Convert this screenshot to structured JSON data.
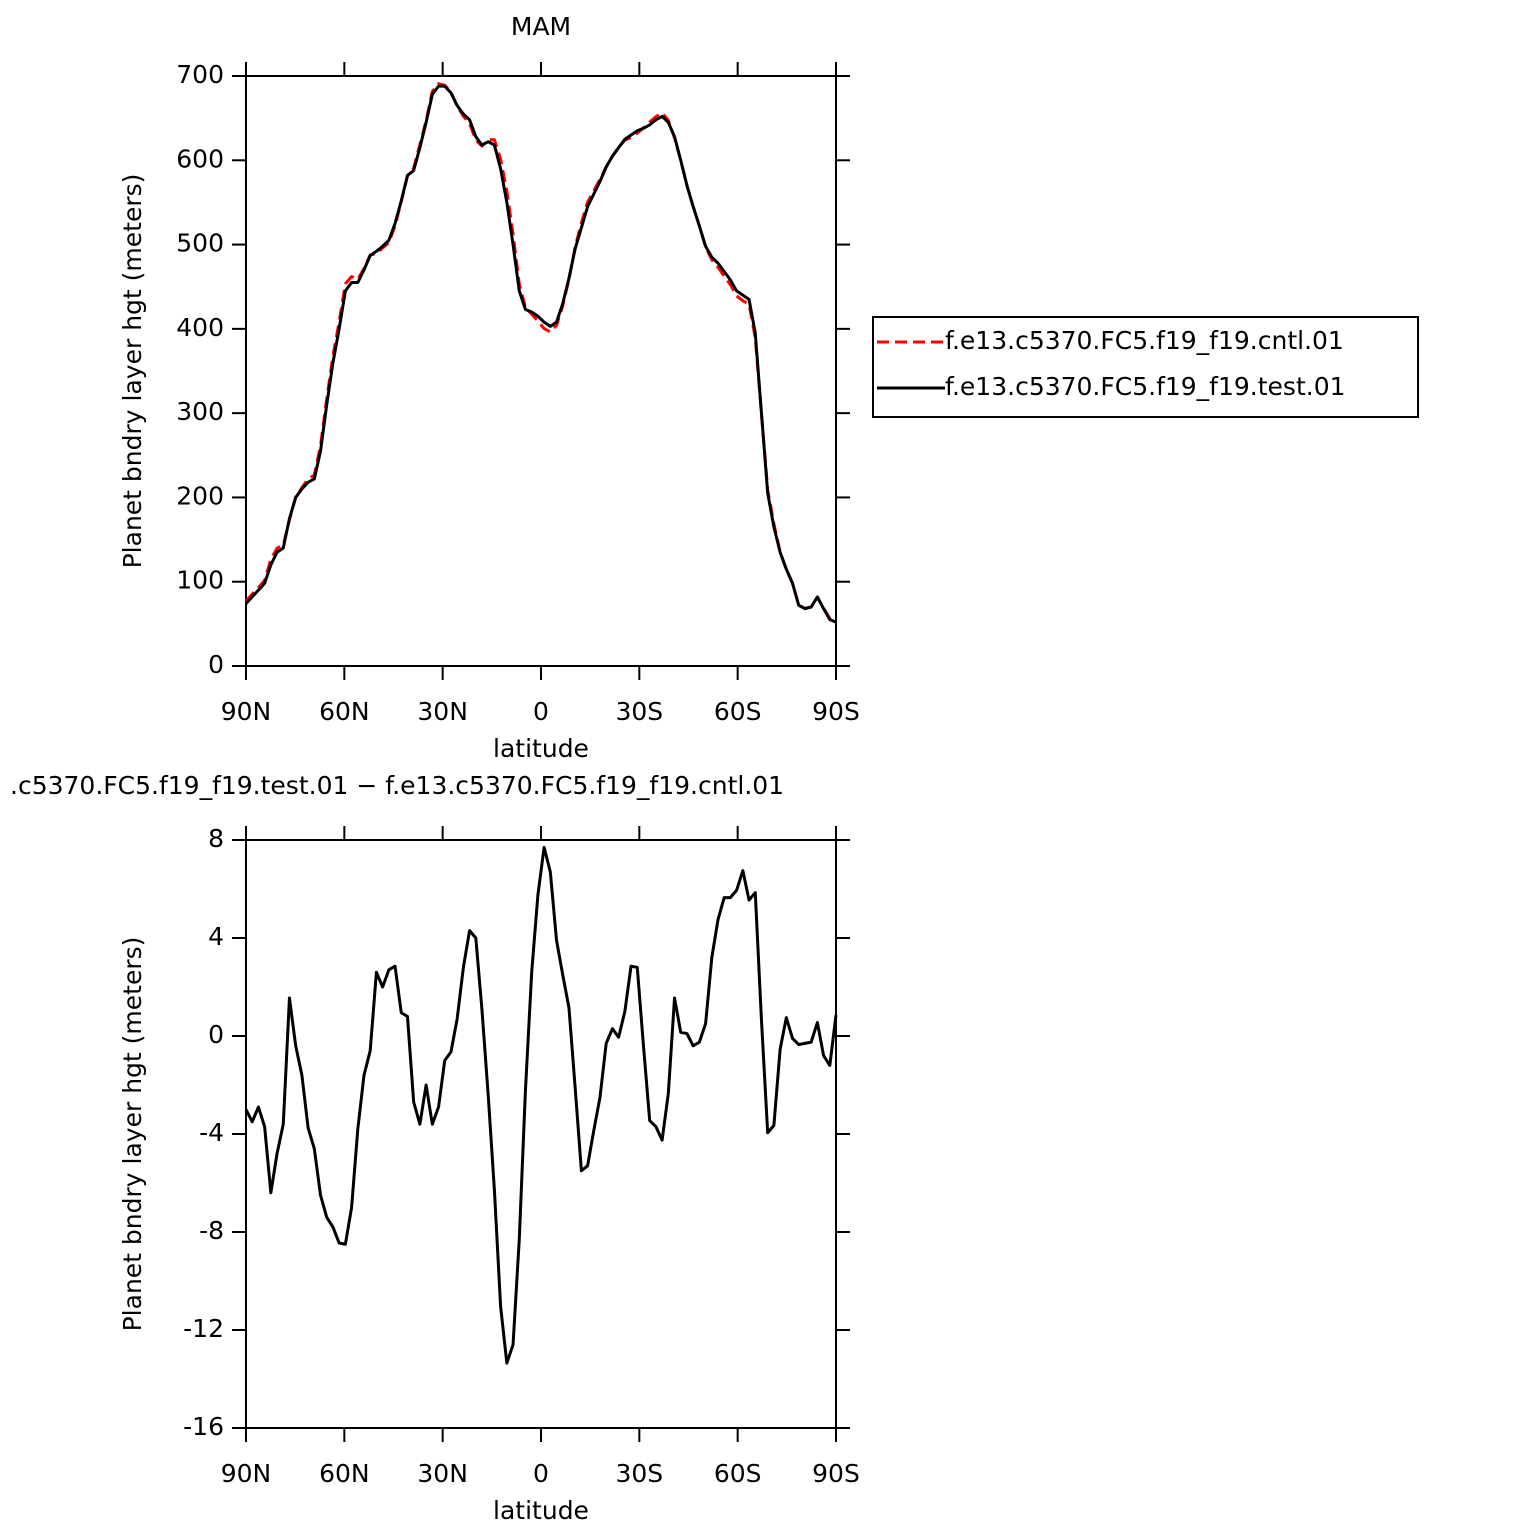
{
  "chart_data": [
    {
      "type": "line",
      "title": "MAM",
      "xlabel": "latitude",
      "ylabel": "Planet bndry layer hgt (meters)",
      "x": [
        90,
        88.11,
        86.21,
        84.32,
        82.42,
        80.53,
        78.63,
        76.74,
        74.84,
        72.95,
        71.05,
        69.16,
        67.26,
        65.37,
        63.47,
        61.58,
        59.68,
        57.79,
        55.89,
        54.0,
        52.11,
        50.21,
        48.32,
        46.42,
        44.53,
        42.63,
        40.74,
        38.84,
        36.95,
        35.05,
        33.16,
        31.26,
        29.37,
        27.47,
        25.58,
        23.68,
        21.79,
        19.89,
        18.0,
        16.11,
        14.21,
        12.32,
        10.42,
        8.53,
        6.63,
        4.74,
        2.84,
        0.95,
        -0.95,
        -2.84,
        -4.74,
        -6.63,
        -8.53,
        -10.42,
        -12.32,
        -14.21,
        -16.11,
        -18.0,
        -19.89,
        -21.79,
        -23.68,
        -25.58,
        -27.47,
        -29.37,
        -31.26,
        -33.16,
        -35.05,
        -36.95,
        -38.84,
        -40.74,
        -42.63,
        -44.53,
        -46.42,
        -48.32,
        -50.21,
        -52.11,
        -54.0,
        -55.89,
        -57.79,
        -59.68,
        -61.58,
        -63.47,
        -65.37,
        -67.26,
        -69.16,
        -71.05,
        -72.95,
        -74.84,
        -76.74,
        -78.63,
        -80.53,
        -82.42,
        -84.32,
        -86.21,
        -88.11,
        -90
      ],
      "series": [
        {
          "name": "f.e13.c5370.FC5.f19_f19.cntl.01",
          "color": "#ff0000",
          "linestyle": "dashed",
          "values": [
            77,
            85.5,
            92.9,
            101.7,
            126.4,
            139.8,
            143.6,
            173.45,
            200.4,
            211.6,
            221.75,
            226.6,
            261.5,
            317.4,
            367.8,
            408.45,
            453.5,
            462,
            458.8,
            471.6,
            487.6,
            489.4,
            496,
            502.3,
            522.15,
            551.05,
            581.2,
            590.7,
            618.6,
            647,
            681.6,
            690.9,
            689,
            680.65,
            664.3,
            652.2,
            643.7,
            624,
            616.95,
            624.4,
            624.3,
            601.05,
            563.35,
            512.6,
            453.3,
            425.2,
            417.4,
            409.25,
            400.3,
            396.3,
            404.1,
            427.5,
            458.85,
            497.1,
            525.5,
            550.3,
            563.85,
            577.5,
            592.3,
            604.7,
            615.05,
            624,
            627.15,
            632.2,
            638.4,
            645.45,
            651.7,
            656.25,
            647.35,
            626.45,
            599.85,
            569.9,
            545.4,
            522.25,
            497.5,
            481.8,
            473.25,
            462.35,
            452.35,
            439.05,
            433.25,
            429.45,
            389.15,
            299.35,
            208.95,
            168.65,
            135.55,
            114.25,
            98.1,
            72.35,
            68.3,
            70.25,
            81.45,
            68.8,
            56.2,
            51.15
          ]
        },
        {
          "name": "f.e13.c5370.FC5.f19_f19.test.01",
          "color": "#000000",
          "linestyle": "solid",
          "values": [
            74,
            82,
            90,
            98,
            120,
            135,
            140,
            175,
            200,
            210,
            218,
            222,
            255,
            310,
            360,
            400,
            445,
            455,
            455,
            470,
            487,
            492,
            498,
            505,
            525,
            552,
            582,
            588,
            615,
            645,
            678,
            688,
            688,
            680,
            665,
            655,
            648,
            628,
            618,
            622,
            618,
            590,
            550,
            500,
            445,
            423,
            420,
            415,
            408,
            403,
            408,
            430,
            460,
            495,
            520,
            545,
            560,
            575,
            592,
            605,
            615,
            625,
            630,
            635,
            638,
            642,
            648,
            652,
            645,
            628,
            600,
            570,
            545,
            522,
            498,
            485,
            478,
            468,
            458,
            445,
            440,
            435,
            395,
            300,
            205,
            165,
            135,
            115,
            98,
            72,
            68,
            70,
            82,
            68,
            55,
            52
          ]
        }
      ],
      "xlim": [
        90,
        -90
      ],
      "xticks": [
        {
          "value": 90,
          "label": "90N"
        },
        {
          "value": 60,
          "label": "60N"
        },
        {
          "value": 30,
          "label": "30N"
        },
        0,
        {
          "value": -30,
          "label": "30S"
        },
        {
          "value": -60,
          "label": "60S"
        },
        {
          "value": -90,
          "label": "90S"
        }
      ],
      "ylim": [
        0,
        700
      ],
      "yticks": [
        0,
        100,
        200,
        300,
        400,
        500,
        600,
        700
      ],
      "legend": "right"
    },
    {
      "type": "line",
      "title": ".c5370.FC5.f19_f19.test.01 − f.e13.c5370.FC5.f19_f19.cntl.01",
      "xlabel": "latitude",
      "ylabel": "Planet bndry layer hgt (meters)",
      "x": [
        90,
        88.11,
        86.21,
        84.32,
        82.42,
        80.53,
        78.63,
        76.74,
        74.84,
        72.95,
        71.05,
        69.16,
        67.26,
        65.37,
        63.47,
        61.58,
        59.68,
        57.79,
        55.89,
        54.0,
        52.11,
        50.21,
        48.32,
        46.42,
        44.53,
        42.63,
        40.74,
        38.84,
        36.95,
        35.05,
        33.16,
        31.26,
        29.37,
        27.47,
        25.58,
        23.68,
        21.79,
        19.89,
        18.0,
        16.11,
        14.21,
        12.32,
        10.42,
        8.53,
        6.63,
        4.74,
        2.84,
        0.95,
        -0.95,
        -2.84,
        -4.74,
        -6.63,
        -8.53,
        -10.42,
        -12.32,
        -14.21,
        -16.11,
        -18.0,
        -19.89,
        -21.79,
        -23.68,
        -25.58,
        -27.47,
        -29.37,
        -31.26,
        -33.16,
        -35.05,
        -36.95,
        -38.84,
        -40.74,
        -42.63,
        -44.53,
        -46.42,
        -48.32,
        -50.21,
        -52.11,
        -54.0,
        -55.89,
        -57.79,
        -59.68,
        -61.58,
        -63.47,
        -65.37,
        -67.26,
        -69.16,
        -71.05,
        -72.95,
        -74.84,
        -76.74,
        -78.63,
        -80.53,
        -82.42,
        -84.32,
        -86.21,
        -88.11,
        -90
      ],
      "series": [
        {
          "color": "#000000",
          "linestyle": "solid",
          "values": [
            -3.0,
            -3.5,
            -2.9,
            -3.7,
            -6.4,
            -4.8,
            -3.6,
            1.55,
            -0.4,
            -1.6,
            -3.75,
            -4.6,
            -6.5,
            -7.4,
            -7.8,
            -8.45,
            -8.5,
            -7.0,
            -3.8,
            -1.6,
            -0.6,
            2.6,
            2.0,
            2.7,
            2.85,
            0.95,
            0.8,
            -2.7,
            -3.6,
            -2.0,
            -3.6,
            -2.9,
            -1.0,
            -0.65,
            0.7,
            2.8,
            4.3,
            4.0,
            1.05,
            -2.4,
            -6.3,
            -11.05,
            -13.35,
            -12.6,
            -8.3,
            -2.2,
            2.6,
            5.75,
            7.7,
            6.7,
            3.9,
            2.5,
            1.15,
            -2.1,
            -5.5,
            -5.3,
            -3.85,
            -2.5,
            -0.3,
            0.3,
            -0.05,
            1.0,
            2.85,
            2.8,
            -0.4,
            -3.45,
            -3.7,
            -4.25,
            -2.35,
            1.55,
            0.15,
            0.1,
            -0.4,
            -0.25,
            0.5,
            3.2,
            4.75,
            5.65,
            5.65,
            5.95,
            6.75,
            5.55,
            5.85,
            0.65,
            -3.95,
            -3.65,
            -0.55,
            0.75,
            -0.1,
            -0.35,
            -0.3,
            -0.25,
            0.55,
            -0.8,
            -1.2,
            0.85
          ]
        }
      ],
      "xlim": [
        90,
        -90
      ],
      "xticks": [
        {
          "value": 90,
          "label": "90N"
        },
        {
          "value": 60,
          "label": "60N"
        },
        {
          "value": 30,
          "label": "30N"
        },
        0,
        {
          "value": -30,
          "label": "30S"
        },
        {
          "value": -60,
          "label": "60S"
        },
        {
          "value": -90,
          "label": "90S"
        }
      ],
      "ylim": [
        -16,
        8
      ],
      "yticks": [
        -16,
        -12,
        -8,
        -4,
        0,
        4,
        8
      ]
    }
  ]
}
